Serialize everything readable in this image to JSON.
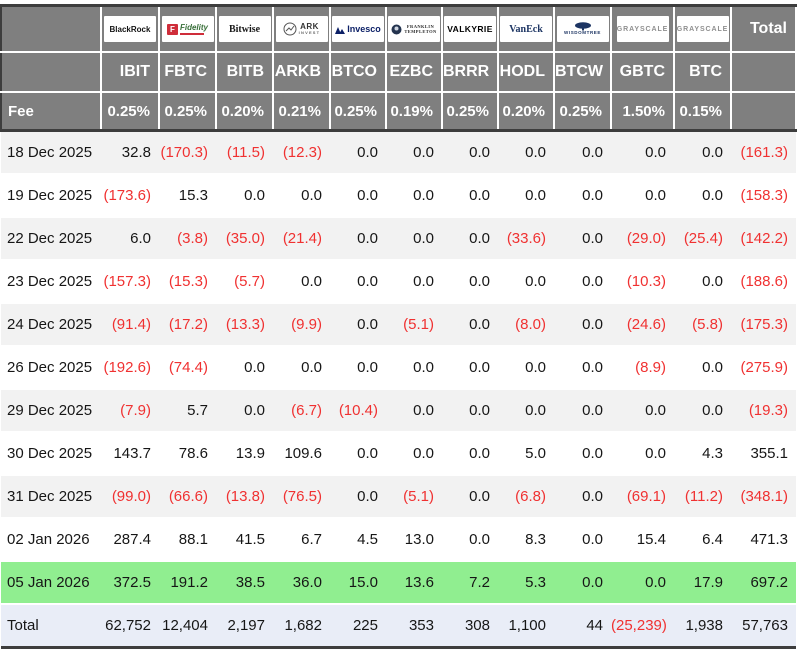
{
  "colors": {
    "header_bg": "#7f7f7f",
    "header_text": "#ffffff",
    "negative": "#f03131",
    "text": "#161616",
    "row_stripe": "#f2f2f2",
    "highlight_green": "#90ee90",
    "total_row_bg": "#e9edf7",
    "frame_border": "#3d3d3d"
  },
  "header": {
    "fee_label": "Fee",
    "total_label": "Total"
  },
  "chart_data": {
    "type": "table",
    "columns": [
      {
        "id": "blackrock",
        "provider": "BlackRock",
        "logo_text": "BlackRock",
        "ticker": "IBIT",
        "fee": "0.25%"
      },
      {
        "id": "fidelity",
        "provider": "Fidelity",
        "logo_text": "Fidelity",
        "ticker": "FBTC",
        "fee": "0.25%"
      },
      {
        "id": "bitwise",
        "provider": "Bitwise",
        "logo_text": "Bitwise",
        "ticker": "BITB",
        "fee": "0.20%"
      },
      {
        "id": "ark",
        "provider": "ARK Invest",
        "logo_text": [
          "ARK",
          "INVEST"
        ],
        "ticker": "ARKB",
        "fee": "0.21%"
      },
      {
        "id": "invesco",
        "provider": "Invesco",
        "logo_text": "Invesco",
        "ticker": "BTCO",
        "fee": "0.25%"
      },
      {
        "id": "franklin",
        "provider": "Franklin Templeton",
        "logo_text": [
          "FRANKLIN",
          "TEMPLETON"
        ],
        "ticker": "EZBC",
        "fee": "0.19%"
      },
      {
        "id": "valkyrie",
        "provider": "Valkyrie",
        "logo_text": "VALKYRIE",
        "ticker": "BRRR",
        "fee": "0.25%"
      },
      {
        "id": "vaneck",
        "provider": "VanEck",
        "logo_text": "VanEck",
        "ticker": "HODL",
        "fee": "0.20%"
      },
      {
        "id": "wisdomtree",
        "provider": "WisdomTree",
        "logo_text": "WISDOMTREE",
        "ticker": "BTCW",
        "fee": "0.25%"
      },
      {
        "id": "grayscale",
        "provider": "Grayscale",
        "logo_text": "GRAYSCALE",
        "ticker": "GBTC",
        "fee": "1.50%"
      },
      {
        "id": "grayscale2",
        "provider": "Grayscale",
        "logo_text": "GRAYSCALE",
        "ticker": "BTC",
        "fee": "0.15%"
      }
    ],
    "rows": [
      {
        "date": "18 Dec 2025",
        "values": [
          "32.8",
          "(170.3)",
          "(11.5)",
          "(12.3)",
          "0.0",
          "0.0",
          "0.0",
          "0.0",
          "0.0",
          "0.0",
          "0.0"
        ],
        "total": "(161.3)"
      },
      {
        "date": "19 Dec 2025",
        "values": [
          "(173.6)",
          "15.3",
          "0.0",
          "0.0",
          "0.0",
          "0.0",
          "0.0",
          "0.0",
          "0.0",
          "0.0",
          "0.0"
        ],
        "total": "(158.3)"
      },
      {
        "date": "22 Dec 2025",
        "values": [
          "6.0",
          "(3.8)",
          "(35.0)",
          "(21.4)",
          "0.0",
          "0.0",
          "0.0",
          "(33.6)",
          "0.0",
          "(29.0)",
          "(25.4)"
        ],
        "total": "(142.2)"
      },
      {
        "date": "23 Dec 2025",
        "values": [
          "(157.3)",
          "(15.3)",
          "(5.7)",
          "0.0",
          "0.0",
          "0.0",
          "0.0",
          "0.0",
          "0.0",
          "(10.3)",
          "0.0"
        ],
        "total": "(188.6)"
      },
      {
        "date": "24 Dec 2025",
        "values": [
          "(91.4)",
          "(17.2)",
          "(13.3)",
          "(9.9)",
          "0.0",
          "(5.1)",
          "0.0",
          "(8.0)",
          "0.0",
          "(24.6)",
          "(5.8)"
        ],
        "total": "(175.3)"
      },
      {
        "date": "26 Dec 2025",
        "values": [
          "(192.6)",
          "(74.4)",
          "0.0",
          "0.0",
          "0.0",
          "0.0",
          "0.0",
          "0.0",
          "0.0",
          "(8.9)",
          "0.0"
        ],
        "total": "(275.9)"
      },
      {
        "date": "29 Dec 2025",
        "values": [
          "(7.9)",
          "5.7",
          "0.0",
          "(6.7)",
          "(10.4)",
          "0.0",
          "0.0",
          "0.0",
          "0.0",
          "0.0",
          "0.0"
        ],
        "total": "(19.3)"
      },
      {
        "date": "30 Dec 2025",
        "values": [
          "143.7",
          "78.6",
          "13.9",
          "109.6",
          "0.0",
          "0.0",
          "0.0",
          "5.0",
          "0.0",
          "0.0",
          "4.3"
        ],
        "total": "355.1"
      },
      {
        "date": "31 Dec 2025",
        "values": [
          "(99.0)",
          "(66.6)",
          "(13.8)",
          "(76.5)",
          "0.0",
          "(5.1)",
          "0.0",
          "(6.8)",
          "0.0",
          "(69.1)",
          "(11.2)"
        ],
        "total": "(348.1)"
      },
      {
        "date": "02 Jan 2026",
        "values": [
          "287.4",
          "88.1",
          "41.5",
          "6.7",
          "4.5",
          "13.0",
          "0.0",
          "8.3",
          "0.0",
          "15.4",
          "6.4"
        ],
        "total": "471.3"
      },
      {
        "date": "05 Jan 2026",
        "values": [
          "372.5",
          "191.2",
          "38.5",
          "36.0",
          "15.0",
          "13.6",
          "7.2",
          "5.3",
          "0.0",
          "0.0",
          "17.9"
        ],
        "total": "697.2",
        "highlight": "green"
      }
    ],
    "total_row": {
      "label": "Total",
      "values": [
        "62,752",
        "12,404",
        "2,197",
        "1,682",
        "225",
        "353",
        "308",
        "1,100",
        "44",
        "(25,239)",
        "1,938"
      ],
      "total": "57,763"
    }
  }
}
